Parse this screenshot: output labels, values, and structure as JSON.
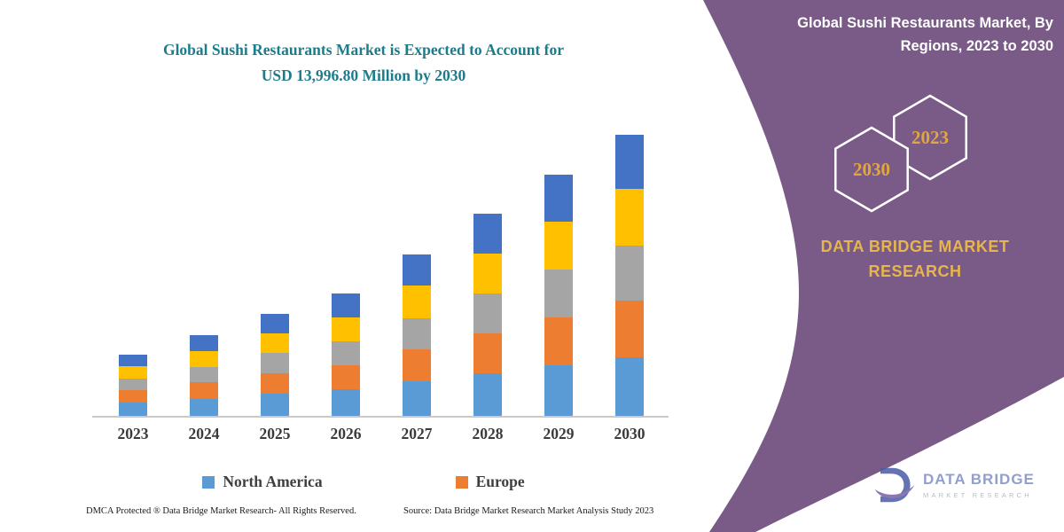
{
  "left": {
    "title_line1": "Global Sushi Restaurants Market is Expected to Account for",
    "title_line2": "USD 13,996.80 Million by 2030",
    "footer_left": "DMCA Protected ® Data Bridge Market Research-  All Rights Reserved.",
    "footer_source": "Source: Data Bridge Market Research  Market Analysis Study 2023"
  },
  "panel": {
    "title_line1": "Global Sushi Restaurants Market, By",
    "title_line2": "Regions, 2023 to 2030",
    "hexagon_year_front": "2030",
    "hexagon_year_back": "2023",
    "brand_line1": "DATA BRIDGE MARKET",
    "brand_line2": "RESEARCH",
    "background_color": "#7A5A87",
    "accent_gold": "#E2A63E"
  },
  "logo": {
    "name_line1": "DATA BRIDGE",
    "name_line2": "MARKET RESEARCH"
  },
  "chart_data": {
    "type": "bar",
    "stacked": true,
    "title": "Global Sushi Restaurants Market is Expected to Account for USD 13,996.80 Million by 2030",
    "unit": "USD Million",
    "categories": [
      "2023",
      "2024",
      "2025",
      "2026",
      "2027",
      "2028",
      "2029",
      "2030"
    ],
    "series": [
      {
        "name": "North America",
        "color": "#5B9BD5",
        "in_legend": true,
        "values": [
          700,
          900,
          1150,
          1350,
          1750,
          2150,
          2550,
          2950
        ]
      },
      {
        "name": "Europe",
        "color": "#ED7D31",
        "in_legend": true,
        "values": [
          600,
          800,
          1000,
          1200,
          1600,
          2000,
          2400,
          2800
        ]
      },
      {
        "name": "",
        "color": "#A5A5A5",
        "in_legend": false,
        "values": [
          600,
          780,
          1000,
          1180,
          1550,
          1950,
          2350,
          2750
        ]
      },
      {
        "name": "",
        "color": "#FFC000",
        "in_legend": false,
        "values": [
          600,
          800,
          1000,
          1200,
          1600,
          2000,
          2400,
          2800
        ]
      },
      {
        "name": "",
        "color": "#4472C4",
        "in_legend": false,
        "values": [
          600,
          790,
          980,
          1170,
          1540,
          1970,
          2310,
          2696.8
        ]
      }
    ],
    "totals": [
      3100,
      4070,
      5130,
      6100,
      8040,
      10070,
      12010,
      13996.8
    ],
    "ylim": [
      0,
      14000
    ],
    "grid": false,
    "legend_position": "bottom",
    "legend": [
      {
        "label": "North America",
        "color": "#5B9BD5"
      },
      {
        "label": "Europe",
        "color": "#ED7D31"
      }
    ]
  }
}
